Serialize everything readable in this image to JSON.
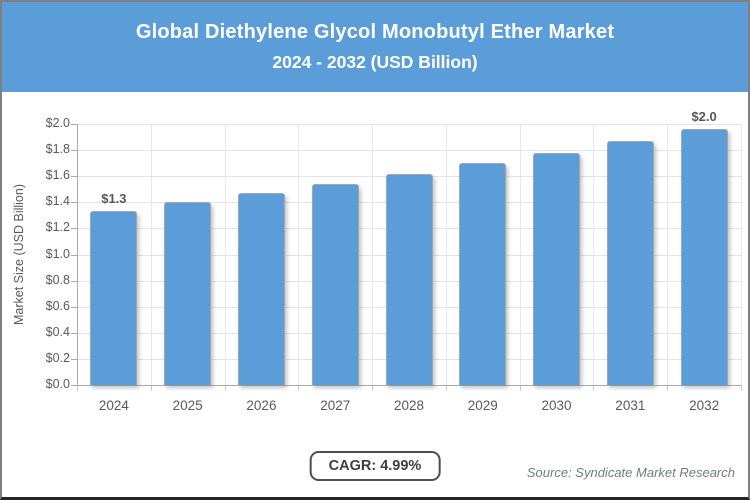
{
  "header": {
    "title_line1": "Global Diethylene Glycol Monobutyl Ether Market",
    "title_line2": "2024 - 2032 (USD Billion)",
    "bg_color": "#5B9DD9",
    "text_color": "#FFFFFF"
  },
  "chart_data": {
    "type": "bar",
    "title": "Global Diethylene Glycol Monobutyl Ether Market 2024 - 2032 (USD Billion)",
    "categories": [
      "2024",
      "2025",
      "2026",
      "2027",
      "2028",
      "2029",
      "2030",
      "2031",
      "2032"
    ],
    "values": [
      1.33,
      1.4,
      1.47,
      1.54,
      1.62,
      1.7,
      1.78,
      1.87,
      1.96
    ],
    "series_name": "Market Size",
    "xlabel": "",
    "ylabel": "Market Size (USD Billion)",
    "ylim": [
      0,
      2.0
    ],
    "ytick_step": 0.2,
    "ytick_labels": [
      "$0.0",
      "$0.2",
      "$0.4",
      "$0.6",
      "$0.8",
      "$1.0",
      "$1.2",
      "$1.4",
      "$1.6",
      "$1.8",
      "$2.0"
    ],
    "grid": true,
    "legend": false,
    "bar_color": "#5B9DD9",
    "value_labels": [
      {
        "category": "2024",
        "text": "$1.3"
      },
      {
        "category": "2032",
        "text": "$2.0"
      }
    ]
  },
  "footer": {
    "cagr_label": "CAGR: 4.99%",
    "source_label": "Source: Syndicate Market Research"
  }
}
